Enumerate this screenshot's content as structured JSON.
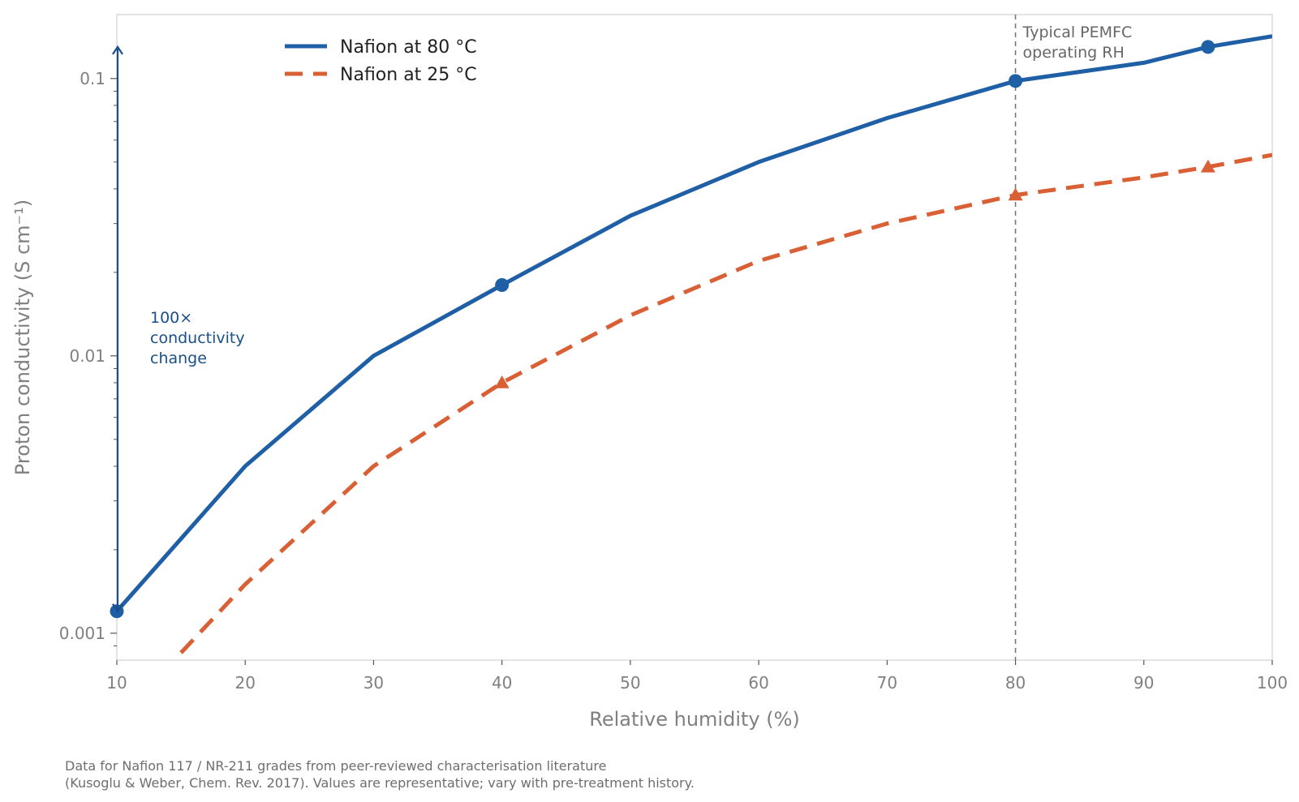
{
  "chart_data": {
    "type": "line",
    "xlabel": "Relative humidity (%)",
    "ylabel": "Proton conductivity (S cm⁻¹)",
    "xlim": [
      10,
      100
    ],
    "ylim": [
      0.0008,
      0.17
    ],
    "yscale": "log",
    "x_ticks": [
      10,
      20,
      30,
      40,
      50,
      60,
      70,
      80,
      90,
      100
    ],
    "x_tick_labels": [
      "10",
      "20",
      "30",
      "40",
      "50",
      "60",
      "70",
      "80",
      "90",
      "100"
    ],
    "y_ticks": [
      0.001,
      0.01,
      0.1
    ],
    "y_tick_labels": [
      "0.001",
      "0.01",
      "0.1"
    ],
    "grid": false,
    "legend_position": "top-left",
    "series": [
      {
        "name": "Nafion at 80 °C",
        "color": "#1f5fa6",
        "style": "solid",
        "marker": "circle",
        "marker_at": [
          10,
          40,
          80,
          95
        ],
        "x": [
          10,
          20,
          30,
          40,
          50,
          60,
          70,
          80,
          90,
          95,
          100
        ],
        "y": [
          0.0012,
          0.004,
          0.01,
          0.018,
          0.032,
          0.05,
          0.072,
          0.098,
          0.114,
          0.13,
          0.142
        ]
      },
      {
        "name": "Nafion at 25 °C",
        "color": "#d95f35",
        "style": "dashed",
        "marker": "triangle",
        "marker_at": [
          40,
          80,
          95
        ],
        "x": [
          15,
          20,
          30,
          40,
          50,
          60,
          70,
          80,
          90,
          95,
          100
        ],
        "y": [
          0.00085,
          0.0015,
          0.004,
          0.008,
          0.014,
          0.022,
          0.03,
          0.038,
          0.044,
          0.048,
          0.053
        ]
      }
    ],
    "annotations": {
      "vline": {
        "x": 80,
        "text_lines": [
          "Typical PEMFC",
          "operating RH"
        ]
      },
      "arrow": {
        "x": 10,
        "y_from": 0.0012,
        "y_to": 0.13,
        "text_lines": [
          "100×",
          "conductivity",
          "change"
        ],
        "color": "#1a4f8a"
      }
    },
    "caption_lines": [
      "Data for Nafion 117 / NR-211 grades from peer-reviewed characterisation literature",
      "(Kusoglu & Weber, Chem. Rev. 2017). Values are representative; vary with pre-treatment history."
    ]
  }
}
